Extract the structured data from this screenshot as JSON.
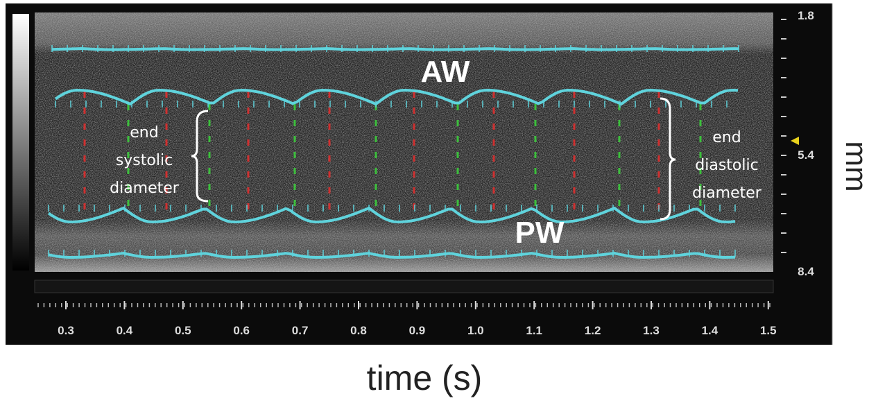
{
  "labels": {
    "aw": "AW",
    "pw": "PW",
    "end_systolic": [
      "end",
      "systolic",
      "diameter"
    ],
    "end_diastolic": [
      "end",
      "diastolic",
      "diameter"
    ]
  },
  "y_axis": {
    "ticks": [
      "1.8",
      "5.4",
      "8.4"
    ],
    "unit": "mm"
  },
  "x_axis": {
    "ticks": [
      "0.3",
      "0.4",
      "0.5",
      "0.6",
      "0.7",
      "0.8",
      "0.9",
      "1.0",
      "1.1",
      "1.2",
      "1.3",
      "1.4",
      "1.5"
    ],
    "title": "time (s)"
  }
}
